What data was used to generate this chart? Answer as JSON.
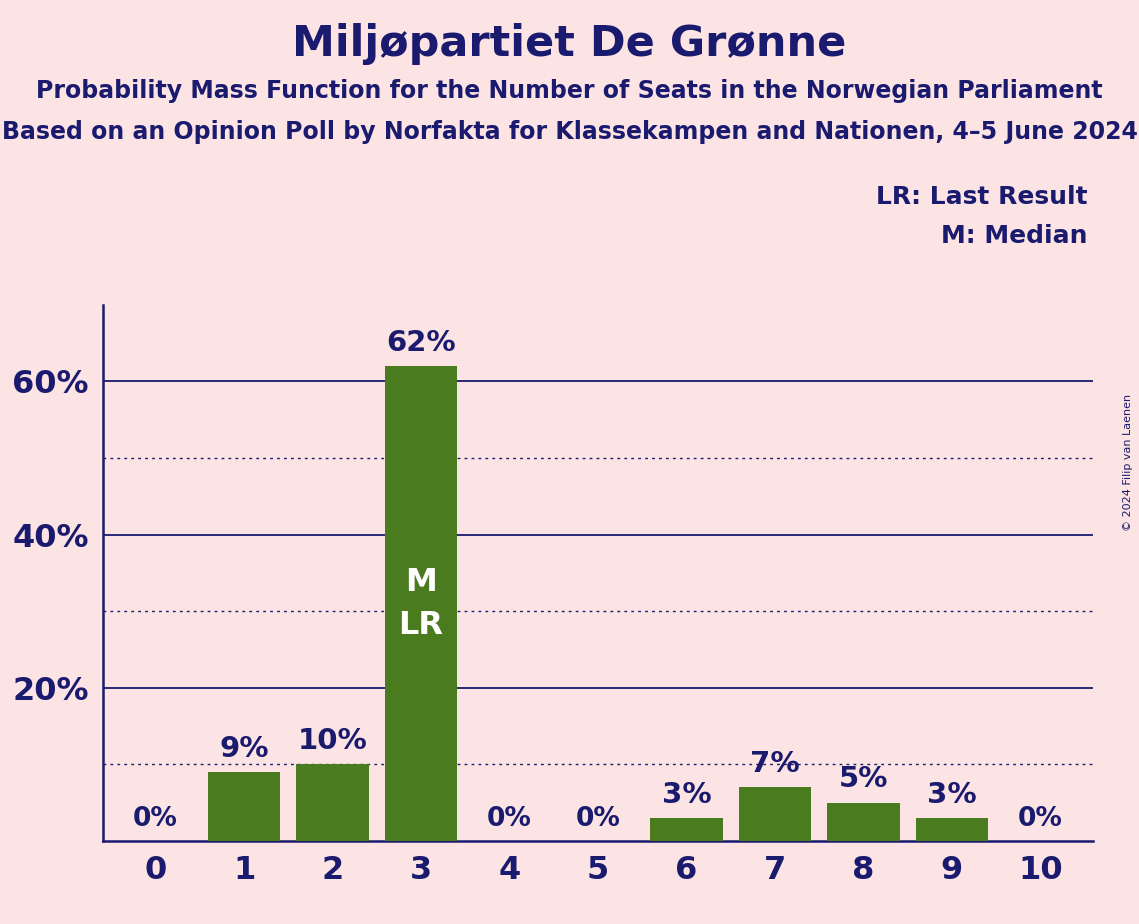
{
  "title": "Miljøpartiet De Grønne",
  "subtitle1": "Probability Mass Function for the Number of Seats in the Norwegian Parliament",
  "subtitle2": "Based on an Opinion Poll by Norfakta for Klassekampen and Nationen, 4–5 June 2024",
  "copyright": "© 2024 Filip van Laenen",
  "categories": [
    0,
    1,
    2,
    3,
    4,
    5,
    6,
    7,
    8,
    9,
    10
  ],
  "values": [
    0,
    9,
    10,
    62,
    0,
    0,
    3,
    7,
    5,
    3,
    0
  ],
  "bar_color": "#4a7c1f",
  "background_color": "#fce4e4",
  "text_color": "#1a1a6e",
  "white_text": "#ffffff",
  "solid_lines": [
    20,
    40,
    60
  ],
  "dotted_lines": [
    10,
    30,
    50
  ],
  "legend_lr": "LR: Last Result",
  "legend_m": "M: Median",
  "ylim_max": 70,
  "bar_width": 0.82
}
